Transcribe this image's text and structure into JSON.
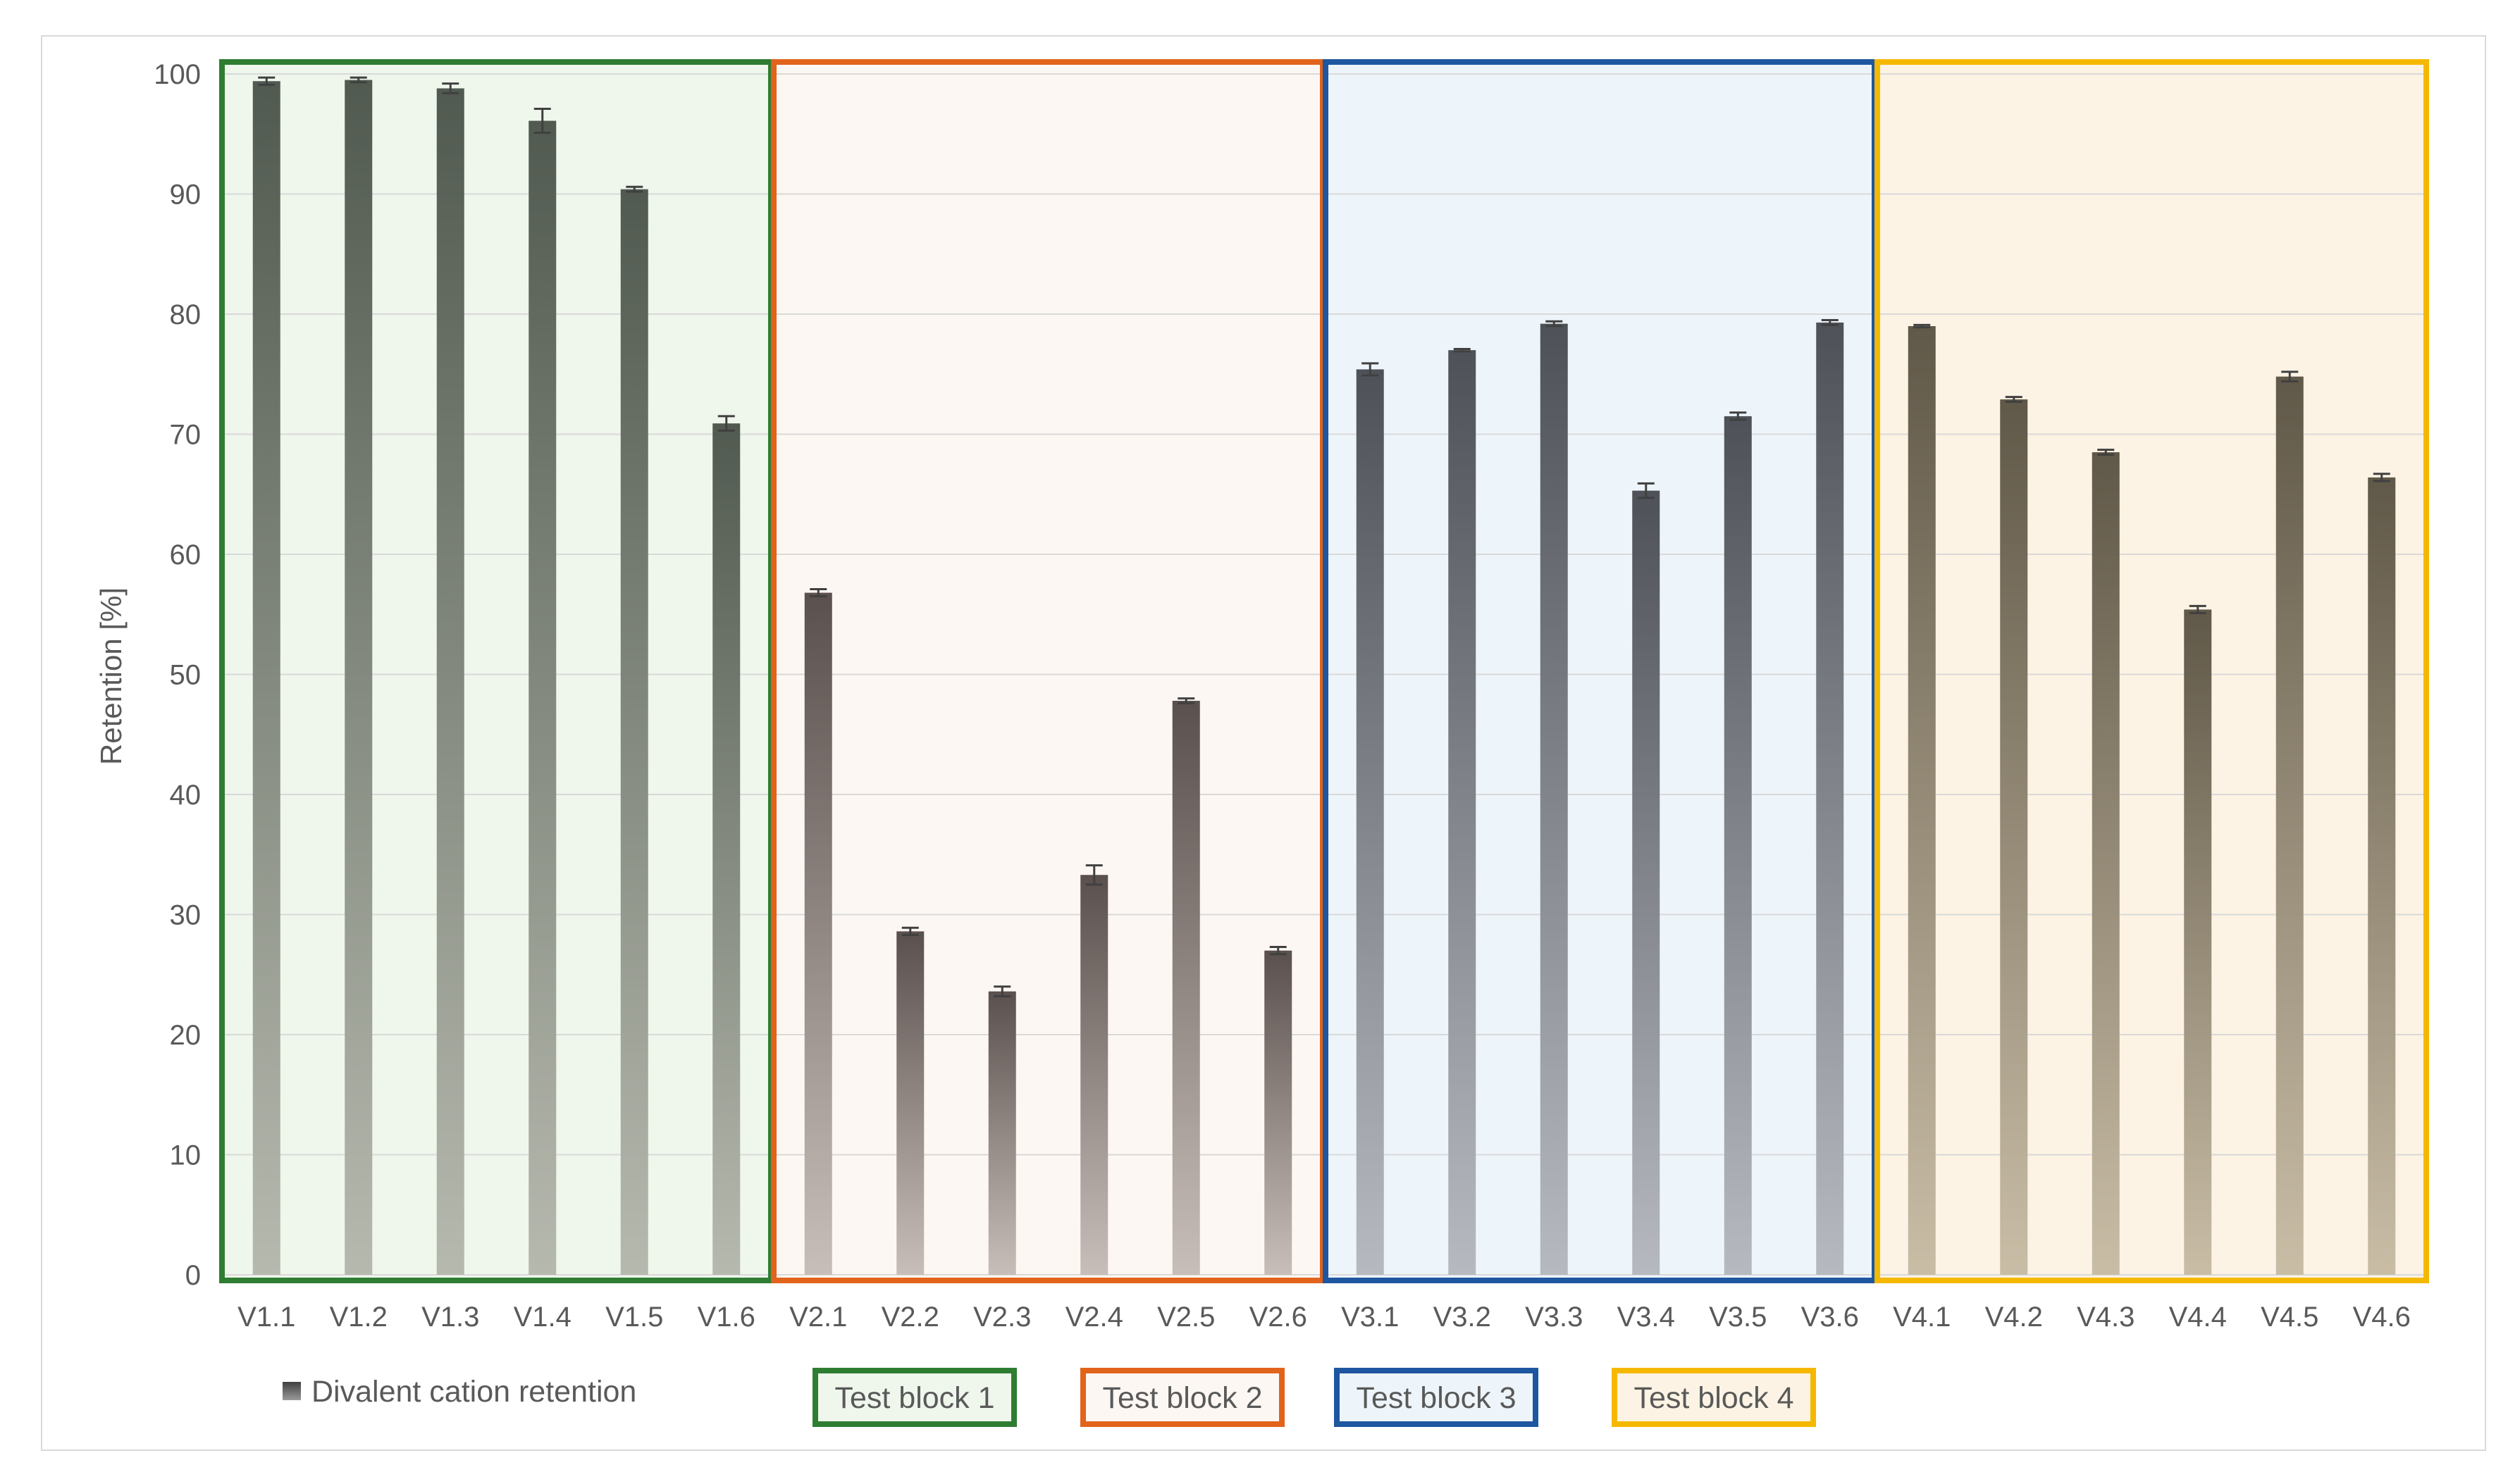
{
  "chart_data": {
    "type": "bar",
    "ylabel": "Retention [%]",
    "ylim": [
      0,
      100
    ],
    "yticks": [
      0,
      10,
      20,
      30,
      40,
      50,
      60,
      70,
      80,
      90,
      100
    ],
    "grid": true,
    "legend_position": "bottom",
    "categories": [
      "V1.1",
      "V1.2",
      "V1.3",
      "V1.4",
      "V1.5",
      "V1.6",
      "V2.1",
      "V2.2",
      "V2.3",
      "V2.4",
      "V2.5",
      "V2.6",
      "V3.1",
      "V3.2",
      "V3.3",
      "V3.4",
      "V3.5",
      "V3.6",
      "V4.1",
      "V4.2",
      "V4.3",
      "V4.4",
      "V4.5",
      "V4.6"
    ],
    "series": [
      {
        "name": "Divalent cation retention",
        "values": [
          99.4,
          99.5,
          98.8,
          96.1,
          90.4,
          70.9,
          56.8,
          28.6,
          23.6,
          33.3,
          47.8,
          27.0,
          75.4,
          77.0,
          79.2,
          65.3,
          71.5,
          79.3,
          79.0,
          72.9,
          68.5,
          55.4,
          74.8,
          66.4
        ],
        "errors": [
          0.3,
          0.2,
          0.4,
          1.0,
          0.2,
          0.6,
          0.3,
          0.3,
          0.4,
          0.8,
          0.2,
          0.3,
          0.5,
          0.1,
          0.2,
          0.6,
          0.3,
          0.2,
          0.1,
          0.2,
          0.2,
          0.3,
          0.4,
          0.3
        ]
      }
    ],
    "blocks": [
      {
        "label": "Test block 1",
        "first": 0,
        "last": 5,
        "color": "#2e7d32",
        "fill": "#eff6ec",
        "bar_top": "#515a50",
        "bar_bottom": "#b6b9ae"
      },
      {
        "label": "Test block 2",
        "first": 6,
        "last": 11,
        "color": "#e2631b",
        "fill": "#fdf7f3",
        "bar_top": "#5a504d",
        "bar_bottom": "#c8beb9"
      },
      {
        "label": "Test block 3",
        "first": 12,
        "last": 17,
        "color": "#1f56a0",
        "fill": "#eef5fa",
        "bar_top": "#4e5258",
        "bar_bottom": "#b6bac0"
      },
      {
        "label": "Test block 4",
        "first": 18,
        "last": 23,
        "color": "#f5b800",
        "fill": "#fcf3e4",
        "bar_top": "#605848",
        "bar_bottom": "#c9bda6"
      }
    ]
  }
}
